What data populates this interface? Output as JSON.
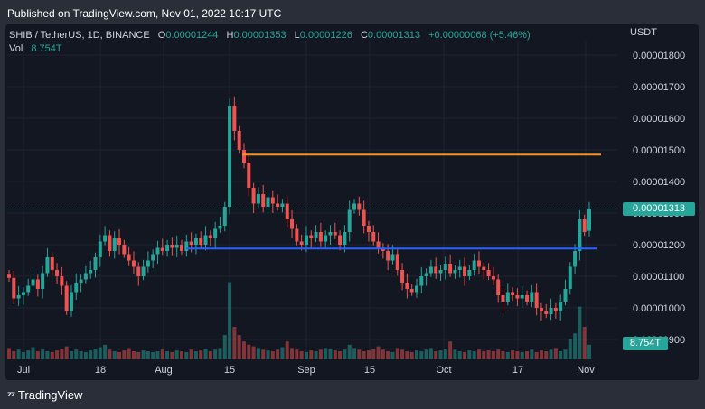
{
  "header": {
    "published": "Published on TradingView.com, Nov 01, 2022 10:17 UTC"
  },
  "legend": {
    "symbol": "SHIB / TetherUS, 1D, BINANCE",
    "o_label": "O",
    "o_value": "0.00001244",
    "h_label": "H",
    "h_value": "0.00001353",
    "l_label": "L",
    "l_value": "0.00001226",
    "c_label": "C",
    "c_value": "0.00001313",
    "change": "+0.00000068 (+5.46%)",
    "vol_label": "Vol",
    "vol_value": "8.754T"
  },
  "axis": {
    "currency": "USDT",
    "last_price_badge": "0.00001313",
    "volume_badge": "8.754T"
  },
  "footer": {
    "brand": "TradingView"
  },
  "colors": {
    "up": "#26a69a",
    "down": "#ef5350",
    "resistance": "#f7931a",
    "support": "#2962ff",
    "background": "#131722",
    "grid": "#1f2330"
  },
  "chart_data": {
    "type": "candlestick",
    "title": "SHIB / TetherUS, 1D, BINANCE",
    "ylabel": "USDT",
    "ylim": [
      8.8e-06,
      1.83e-05
    ],
    "yticks": [
      "0.00001800",
      "0.00001700",
      "0.00001600",
      "0.00001500",
      "0.00001400",
      "0.00001300",
      "0.00001200",
      "0.00001100",
      "0.00001000",
      "0.00000900"
    ],
    "xticks": [
      "Jul",
      "18",
      "Aug",
      "15",
      "Sep",
      "15",
      "Oct",
      "17",
      "Nov"
    ],
    "last_close": 1.313e-05,
    "horizontal_lines": [
      {
        "name": "resistance",
        "value": 1.485e-05,
        "color": "#f7931a"
      },
      {
        "name": "support",
        "value": 1.188e-05,
        "color": "#2962ff"
      }
    ],
    "closes": [
      1.095,
      1.03,
      1.04,
      1.05,
      1.07,
      1.09,
      1.06,
      1.11,
      1.16,
      1.12,
      1.1,
      1.07,
      0.99,
      1.05,
      1.08,
      1.09,
      1.11,
      1.12,
      1.16,
      1.21,
      1.23,
      1.18,
      1.22,
      1.2,
      1.17,
      1.15,
      1.13,
      1.1,
      1.13,
      1.15,
      1.17,
      1.19,
      1.18,
      1.2,
      1.19,
      1.2,
      1.18,
      1.21,
      1.2,
      1.22,
      1.2,
      1.23,
      1.22,
      1.25,
      1.26,
      1.32,
      1.64,
      1.56,
      1.5,
      1.46,
      1.38,
      1.33,
      1.36,
      1.32,
      1.35,
      1.33,
      1.32,
      1.33,
      1.28,
      1.25,
      1.21,
      1.2,
      1.23,
      1.22,
      1.24,
      1.21,
      1.23,
      1.24,
      1.23,
      1.2,
      1.24,
      1.31,
      1.33,
      1.31,
      1.26,
      1.24,
      1.21,
      1.19,
      1.18,
      1.15,
      1.17,
      1.12,
      1.08,
      1.06,
      1.05,
      1.07,
      1.1,
      1.11,
      1.13,
      1.11,
      1.12,
      1.14,
      1.11,
      1.12,
      1.13,
      1.1,
      1.12,
      1.15,
      1.13,
      1.12,
      1.1,
      1.09,
      1.04,
      1.02,
      1.05,
      1.04,
      1.03,
      1.04,
      1.02,
      1.05,
      1.0,
      0.99,
      0.98,
      1.0,
      0.99,
      1.02,
      1.06,
      1.13,
      1.18,
      1.28,
      1.24,
      1.313
    ],
    "volumes": [
      0.14,
      0.1,
      0.12,
      0.09,
      0.11,
      0.15,
      0.1,
      0.12,
      0.1,
      0.09,
      0.11,
      0.13,
      0.16,
      0.1,
      0.12,
      0.1,
      0.09,
      0.11,
      0.13,
      0.15,
      0.18,
      0.12,
      0.1,
      0.09,
      0.11,
      0.14,
      0.1,
      0.09,
      0.11,
      0.1,
      0.09,
      0.1,
      0.12,
      0.1,
      0.09,
      0.11,
      0.1,
      0.09,
      0.12,
      0.1,
      0.11,
      0.13,
      0.1,
      0.12,
      0.14,
      0.3,
      0.95,
      0.4,
      0.3,
      0.22,
      0.18,
      0.16,
      0.14,
      0.12,
      0.11,
      0.1,
      0.12,
      0.15,
      0.22,
      0.14,
      0.12,
      0.1,
      0.09,
      0.11,
      0.1,
      0.12,
      0.14,
      0.13,
      0.11,
      0.1,
      0.12,
      0.18,
      0.14,
      0.12,
      0.1,
      0.11,
      0.13,
      0.16,
      0.12,
      0.1,
      0.09,
      0.14,
      0.12,
      0.1,
      0.09,
      0.11,
      0.1,
      0.12,
      0.14,
      0.1,
      0.11,
      0.13,
      0.22,
      0.12,
      0.1,
      0.09,
      0.11,
      0.1,
      0.12,
      0.1,
      0.11,
      0.1,
      0.12,
      0.1,
      0.09,
      0.11,
      0.1,
      0.09,
      0.1,
      0.12,
      0.09,
      0.11,
      0.1,
      0.12,
      0.14,
      0.1,
      0.12,
      0.25,
      0.32,
      0.65,
      0.4,
      0.18
    ],
    "volume_unit_note_value": "8.754T"
  }
}
